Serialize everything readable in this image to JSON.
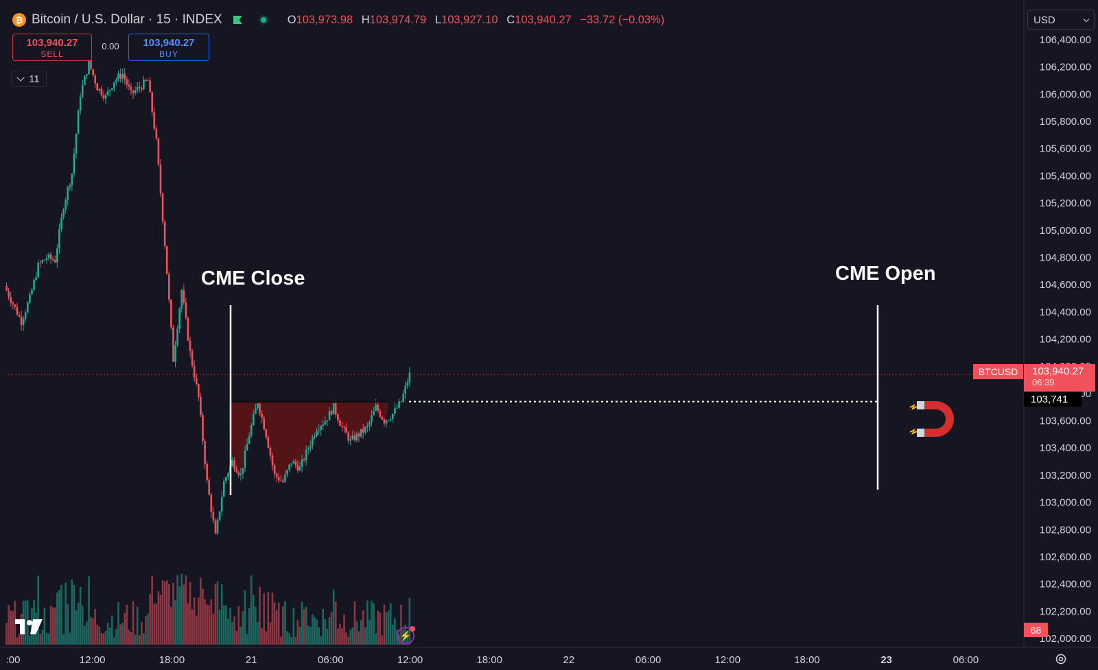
{
  "header": {
    "coin_glyph": "₿",
    "symbol_title": "Bitcoin / U.S. Dollar · 15 · INDEX",
    "ohlc": [
      {
        "key": "O",
        "value": "103,973.98"
      },
      {
        "key": "H",
        "value": "103,974.79"
      },
      {
        "key": "L",
        "value": "103,927.10"
      },
      {
        "key": "C",
        "value": "103,940.27"
      }
    ],
    "change": "−33.72 (−0.03%)"
  },
  "trade": {
    "sell_price": "103,940.27",
    "sell_label": "SELL",
    "spread": "0.00",
    "buy_price": "103,940.27",
    "buy_label": "BUY"
  },
  "indicators_count": "11",
  "currency": "USD",
  "annotations": {
    "cme_close": "CME Close",
    "cme_open": "CME Open"
  },
  "price_tags": {
    "symbol": "BTCUSD",
    "last_price": "103,940.27",
    "countdown": "06:39",
    "gap_level": "103,741",
    "volume": "68"
  },
  "colors": {
    "up": "#22ab94",
    "down": "#f0515a",
    "background": "#161622",
    "gap_fill": "#5a1416"
  },
  "chart_data": {
    "type": "candlestick",
    "y_axis": {
      "min": 102000,
      "max": 106400,
      "ticks": [
        "106,400.00",
        "106,200.00",
        "106,000.00",
        "105,800.00",
        "105,600.00",
        "105,400.00",
        "105,200.00",
        "105,000.00",
        "104,800.00",
        "104,600.00",
        "104,400.00",
        "104,200.00",
        "104,000.00",
        "103,800.00",
        "103,600.00",
        "103,400.00",
        "103,200.00",
        "103,000.00",
        "102,800.00",
        "102,600.00",
        "102,400.00",
        "102,200.00",
        "102,000.00"
      ]
    },
    "x_axis": {
      "ticks": [
        ":00",
        "12:00",
        "18:00",
        "21",
        "06:00",
        "12:00",
        "18:00",
        "22",
        "06:00",
        "12:00",
        "18:00",
        "23",
        "06:00"
      ],
      "bold_ticks": [
        "23"
      ]
    },
    "close_path": [
      {
        "t": 0,
        "p": 104590
      },
      {
        "t": 2,
        "p": 104330
      },
      {
        "t": 3,
        "p": 104500
      },
      {
        "t": 4,
        "p": 104740
      },
      {
        "t": 5,
        "p": 104800
      },
      {
        "t": 6,
        "p": 104780
      },
      {
        "t": 7,
        "p": 105180
      },
      {
        "t": 8,
        "p": 105420
      },
      {
        "t": 9,
        "p": 106000
      },
      {
        "t": 10,
        "p": 106230
      },
      {
        "t": 11,
        "p": 106050
      },
      {
        "t": 12,
        "p": 105980
      },
      {
        "t": 13,
        "p": 106100
      },
      {
        "t": 14,
        "p": 106150
      },
      {
        "t": 15,
        "p": 106000
      },
      {
        "t": 16,
        "p": 106050
      },
      {
        "t": 17,
        "p": 106100
      },
      {
        "t": 18,
        "p": 105650
      },
      {
        "t": 19,
        "p": 104900
      },
      {
        "t": 20,
        "p": 104050
      },
      {
        "t": 21,
        "p": 104560
      },
      {
        "t": 22,
        "p": 104100
      },
      {
        "t": 23,
        "p": 103770
      },
      {
        "t": 24,
        "p": 103150
      },
      {
        "t": 25,
        "p": 102750
      },
      {
        "t": 26,
        "p": 103150
      },
      {
        "t": 27,
        "p": 103300
      },
      {
        "t": 28,
        "p": 103200
      },
      {
        "t": 29,
        "p": 103500
      },
      {
        "t": 30,
        "p": 103741
      },
      {
        "t": 31,
        "p": 103500
      },
      {
        "t": 32,
        "p": 103200
      },
      {
        "t": 33,
        "p": 103150
      },
      {
        "t": 34,
        "p": 103300
      },
      {
        "t": 35,
        "p": 103250
      },
      {
        "t": 36,
        "p": 103400
      },
      {
        "t": 37,
        "p": 103550
      },
      {
        "t": 38,
        "p": 103600
      },
      {
        "t": 39,
        "p": 103700
      },
      {
        "t": 40,
        "p": 103550
      },
      {
        "t": 41,
        "p": 103450
      },
      {
        "t": 42,
        "p": 103500
      },
      {
        "t": 43,
        "p": 103550
      },
      {
        "t": 44,
        "p": 103700
      },
      {
        "t": 45,
        "p": 103600
      },
      {
        "t": 46,
        "p": 103650
      },
      {
        "t": 47,
        "p": 103741
      },
      {
        "t": 48,
        "p": 103940
      }
    ],
    "gap_level": 103741,
    "last_price": 103940.27
  }
}
